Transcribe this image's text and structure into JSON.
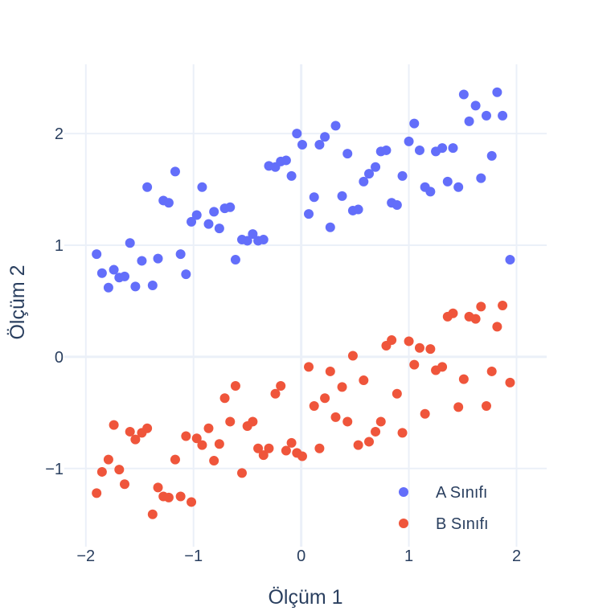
{
  "chart_data": {
    "type": "scatter",
    "xlabel": "Ölçüm 1",
    "ylabel": "Ölçüm 2",
    "xlim": [
      -2.2,
      2.28
    ],
    "ylim": [
      -1.7,
      2.62
    ],
    "x_ticks": [
      -2,
      -1,
      0,
      1,
      2
    ],
    "x_tick_labels": [
      "−2",
      "−1",
      "0",
      "1",
      "2"
    ],
    "y_ticks": [
      -1,
      0,
      1,
      2
    ],
    "y_tick_labels": [
      "−1",
      "0",
      "1",
      "2"
    ],
    "grid": true,
    "legend_position": "bottom-right",
    "series": [
      {
        "name": "A Sınıfı",
        "color": "#636efa",
        "points": [
          [
            -1.9,
            0.92
          ],
          [
            -1.85,
            0.75
          ],
          [
            -1.79,
            0.62
          ],
          [
            -1.74,
            0.78
          ],
          [
            -1.69,
            0.71
          ],
          [
            -1.64,
            0.72
          ],
          [
            -1.59,
            1.02
          ],
          [
            -1.54,
            0.63
          ],
          [
            -1.48,
            0.86
          ],
          [
            -1.43,
            1.52
          ],
          [
            -1.38,
            0.64
          ],
          [
            -1.33,
            0.88
          ],
          [
            -1.28,
            1.4
          ],
          [
            -1.23,
            1.38
          ],
          [
            -1.17,
            1.66
          ],
          [
            -1.12,
            0.92
          ],
          [
            -1.07,
            0.74
          ],
          [
            -1.02,
            1.21
          ],
          [
            -0.97,
            1.27
          ],
          [
            -0.92,
            1.52
          ],
          [
            -0.86,
            1.19
          ],
          [
            -0.81,
            1.3
          ],
          [
            -0.76,
            1.15
          ],
          [
            -0.71,
            1.33
          ],
          [
            -0.66,
            1.34
          ],
          [
            -0.61,
            0.87
          ],
          [
            -0.55,
            1.05
          ],
          [
            -0.5,
            1.04
          ],
          [
            -0.45,
            1.1
          ],
          [
            -0.4,
            1.04
          ],
          [
            -0.35,
            1.05
          ],
          [
            -0.3,
            1.71
          ],
          [
            -0.24,
            1.7
          ],
          [
            -0.19,
            1.75
          ],
          [
            -0.14,
            1.76
          ],
          [
            -0.09,
            1.62
          ],
          [
            -0.04,
            2.0
          ],
          [
            0.01,
            1.9
          ],
          [
            0.07,
            1.28
          ],
          [
            0.12,
            1.43
          ],
          [
            0.17,
            1.9
          ],
          [
            0.22,
            1.97
          ],
          [
            0.27,
            1.16
          ],
          [
            0.32,
            2.07
          ],
          [
            0.38,
            1.44
          ],
          [
            0.43,
            1.82
          ],
          [
            0.48,
            1.31
          ],
          [
            0.53,
            1.32
          ],
          [
            0.58,
            1.57
          ],
          [
            0.63,
            1.64
          ],
          [
            0.69,
            1.7
          ],
          [
            0.74,
            1.84
          ],
          [
            0.79,
            1.85
          ],
          [
            0.84,
            1.38
          ],
          [
            0.89,
            1.36
          ],
          [
            0.94,
            1.62
          ],
          [
            1.0,
            1.93
          ],
          [
            1.05,
            2.09
          ],
          [
            1.1,
            1.85
          ],
          [
            1.15,
            1.52
          ],
          [
            1.2,
            1.48
          ],
          [
            1.25,
            1.84
          ],
          [
            1.31,
            1.87
          ],
          [
            1.36,
            1.57
          ],
          [
            1.41,
            1.87
          ],
          [
            1.46,
            1.52
          ],
          [
            1.51,
            2.35
          ],
          [
            1.56,
            2.11
          ],
          [
            1.62,
            2.25
          ],
          [
            1.67,
            1.6
          ],
          [
            1.72,
            2.16
          ],
          [
            1.77,
            1.8
          ],
          [
            1.82,
            2.37
          ],
          [
            1.87,
            2.16
          ],
          [
            1.94,
            0.87
          ]
        ]
      },
      {
        "name": "B Sınıfı",
        "color": "#ef553b",
        "points": [
          [
            -1.9,
            -1.22
          ],
          [
            -1.85,
            -1.03
          ],
          [
            -1.79,
            -0.92
          ],
          [
            -1.74,
            -0.61
          ],
          [
            -1.69,
            -1.01
          ],
          [
            -1.64,
            -1.14
          ],
          [
            -1.59,
            -0.67
          ],
          [
            -1.54,
            -0.74
          ],
          [
            -1.48,
            -0.68
          ],
          [
            -1.43,
            -0.64
          ],
          [
            -1.38,
            -1.41
          ],
          [
            -1.33,
            -1.17
          ],
          [
            -1.28,
            -1.25
          ],
          [
            -1.23,
            -1.26
          ],
          [
            -1.17,
            -0.92
          ],
          [
            -1.12,
            -1.25
          ],
          [
            -1.07,
            -0.71
          ],
          [
            -1.02,
            -1.3
          ],
          [
            -0.97,
            -0.73
          ],
          [
            -0.92,
            -0.79
          ],
          [
            -0.86,
            -0.64
          ],
          [
            -0.81,
            -0.93
          ],
          [
            -0.76,
            -0.78
          ],
          [
            -0.71,
            -0.37
          ],
          [
            -0.66,
            -0.58
          ],
          [
            -0.61,
            -0.26
          ],
          [
            -0.55,
            -1.04
          ],
          [
            -0.5,
            -0.62
          ],
          [
            -0.45,
            -0.58
          ],
          [
            -0.4,
            -0.82
          ],
          [
            -0.35,
            -0.88
          ],
          [
            -0.3,
            -0.82
          ],
          [
            -0.24,
            -0.33
          ],
          [
            -0.19,
            -0.26
          ],
          [
            -0.14,
            -0.84
          ],
          [
            -0.09,
            -0.77
          ],
          [
            -0.04,
            -0.86
          ],
          [
            0.01,
            -0.89
          ],
          [
            0.07,
            -0.09
          ],
          [
            0.12,
            -0.44
          ],
          [
            0.17,
            -0.82
          ],
          [
            0.22,
            -0.37
          ],
          [
            0.27,
            -0.13
          ],
          [
            0.32,
            -0.54
          ],
          [
            0.38,
            -0.27
          ],
          [
            0.43,
            -0.58
          ],
          [
            0.48,
            0.01
          ],
          [
            0.53,
            -0.79
          ],
          [
            0.58,
            -0.21
          ],
          [
            0.63,
            -0.76
          ],
          [
            0.69,
            -0.67
          ],
          [
            0.74,
            -0.58
          ],
          [
            0.79,
            0.1
          ],
          [
            0.84,
            0.15
          ],
          [
            0.89,
            -0.33
          ],
          [
            0.94,
            -0.68
          ],
          [
            1.0,
            0.14
          ],
          [
            1.05,
            -0.07
          ],
          [
            1.1,
            0.08
          ],
          [
            1.15,
            -0.51
          ],
          [
            1.2,
            0.07
          ],
          [
            1.25,
            -0.12
          ],
          [
            1.31,
            -0.09
          ],
          [
            1.36,
            0.36
          ],
          [
            1.41,
            0.39
          ],
          [
            1.46,
            -0.45
          ],
          [
            1.51,
            -0.2
          ],
          [
            1.56,
            0.36
          ],
          [
            1.62,
            0.34
          ],
          [
            1.67,
            0.45
          ],
          [
            1.72,
            -0.44
          ],
          [
            1.77,
            -0.13
          ],
          [
            1.82,
            0.27
          ],
          [
            1.87,
            0.46
          ],
          [
            1.94,
            -0.23
          ]
        ]
      }
    ]
  }
}
